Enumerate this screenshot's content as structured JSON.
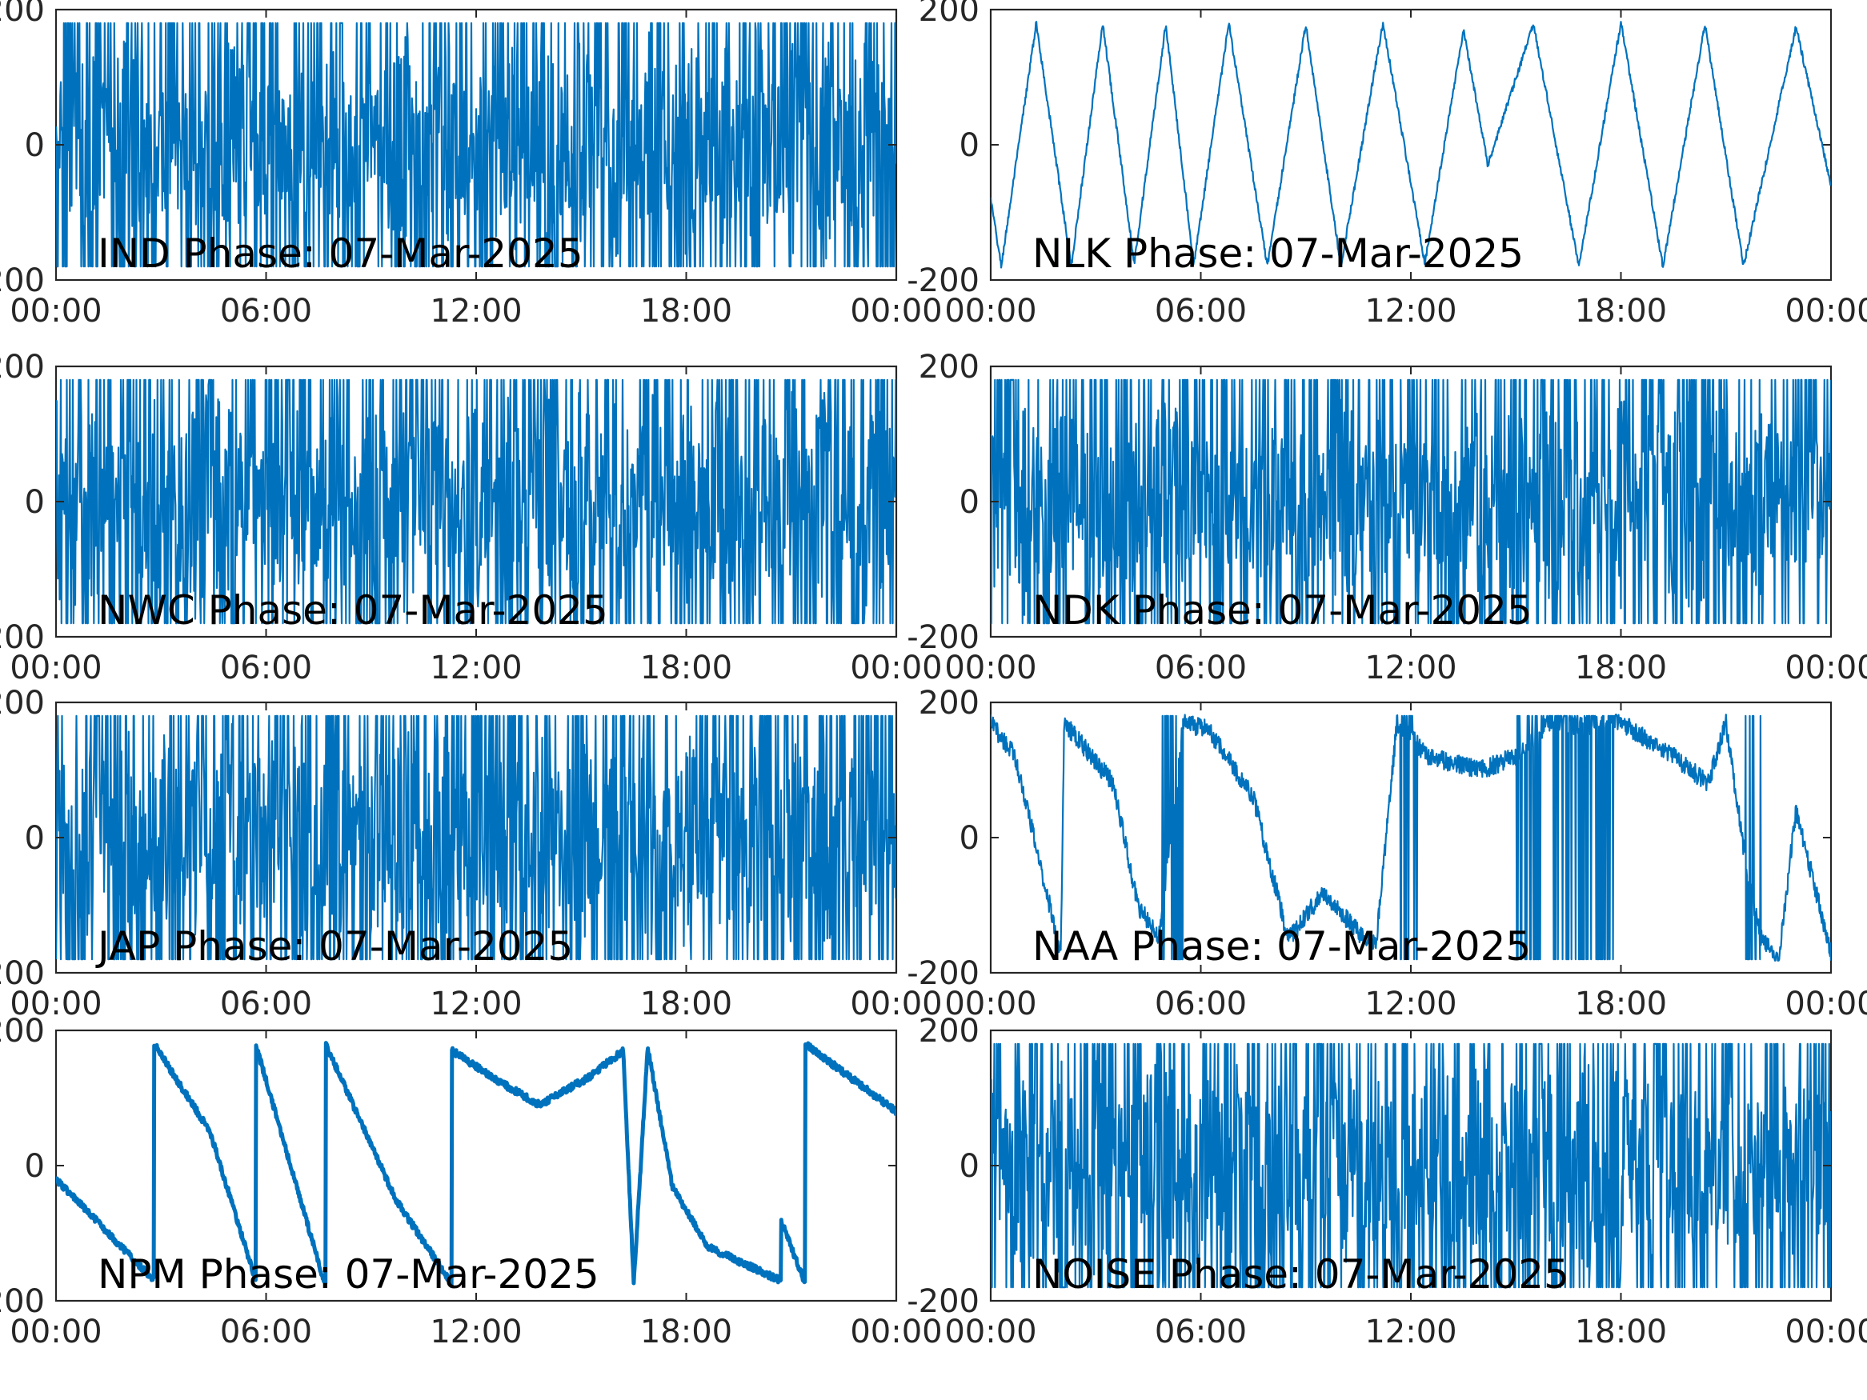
{
  "chart_data": [
    {
      "type": "line",
      "title": "IND Phase: 07-Mar-2025",
      "x_tick_labels": [
        "00:00",
        "06:00",
        "12:00",
        "18:00",
        "00:00"
      ],
      "y_tick_labels": [
        "-200",
        "0",
        "200"
      ],
      "xlim_hours": [
        0,
        24
      ],
      "ylim": [
        -200,
        200
      ],
      "style": "dense_noise",
      "x": [
        0,
        1,
        2,
        3,
        4,
        5,
        6,
        7,
        8,
        9,
        10,
        11,
        12,
        13,
        14,
        15,
        16,
        17,
        18,
        19,
        20,
        21,
        22,
        23,
        24
      ],
      "y": [
        40,
        -120,
        150,
        -30,
        90,
        -150,
        60,
        -80,
        110,
        -20,
        170,
        -160,
        30,
        175,
        -175,
        170,
        -170,
        175,
        -175,
        160,
        -165,
        170,
        -160,
        150,
        -20
      ],
      "grid": false
    },
    {
      "type": "line",
      "title": "NLK Phase: 07-Mar-2025",
      "x_tick_labels": [
        "00:00",
        "06:00",
        "12:00",
        "18:00",
        "00:00"
      ],
      "y_tick_labels": [
        "-200",
        "0",
        "200"
      ],
      "xlim_hours": [
        0,
        24
      ],
      "ylim": [
        -200,
        200
      ],
      "style": "sawtooth",
      "x": [
        0,
        0.3,
        1.3,
        2.3,
        3.2,
        4.1,
        5.0,
        5.8,
        6.8,
        7.9,
        9.0,
        10.0,
        11.2,
        12.4,
        13.5,
        14.2,
        15.5,
        16.8,
        18.0,
        19.2,
        20.4,
        21.5,
        23.0,
        24.0
      ],
      "y": [
        -80,
        -180,
        180,
        -180,
        180,
        -175,
        178,
        -178,
        180,
        -180,
        178,
        -180,
        180,
        -175,
        170,
        -30,
        178,
        -180,
        180,
        -180,
        178,
        -180,
        175,
        -60
      ],
      "grid": false
    },
    {
      "type": "line",
      "title": "NWC Phase: 07-Mar-2025",
      "x_tick_labels": [
        "00:00",
        "06:00",
        "12:00",
        "18:00",
        "00:00"
      ],
      "y_tick_labels": [
        "-200",
        "0",
        "200"
      ],
      "xlim_hours": [
        0,
        24
      ],
      "ylim": [
        -200,
        200
      ],
      "style": "dense_noise",
      "x": [
        0,
        0.6,
        1.0,
        1.6,
        2.2,
        3.0,
        3.8,
        4.5,
        5.5,
        7,
        8,
        9,
        10,
        11,
        12,
        13,
        14,
        15,
        16,
        17,
        18,
        19,
        20,
        21,
        22,
        23,
        24
      ],
      "y": [
        -170,
        170,
        120,
        80,
        0,
        -180,
        175,
        170,
        0,
        150,
        -160,
        170,
        -170,
        160,
        -175,
        170,
        -170,
        165,
        -170,
        175,
        -175,
        170,
        -170,
        165,
        -170,
        170,
        30
      ],
      "grid": false
    },
    {
      "type": "line",
      "title": "NDK Phase: 07-Mar-2025",
      "x_tick_labels": [
        "00:00",
        "06:00",
        "12:00",
        "18:00",
        "00:00"
      ],
      "y_tick_labels": [
        "-200",
        "0",
        "200"
      ],
      "xlim_hours": [
        0,
        24
      ],
      "ylim": [
        -200,
        200
      ],
      "style": "dense_noise",
      "x": [
        0,
        1,
        2,
        3,
        4,
        5,
        6,
        7,
        8,
        9,
        10,
        11,
        12,
        13,
        14,
        15,
        16,
        17,
        18,
        19,
        20,
        21,
        22,
        23,
        24
      ],
      "y": [
        -120,
        170,
        -175,
        120,
        -100,
        160,
        -40,
        30,
        -90,
        100,
        -170,
        80,
        -60,
        40,
        -100,
        150,
        -160,
        170,
        -170,
        150,
        130,
        90,
        -100,
        60,
        -20
      ],
      "grid": false
    },
    {
      "type": "line",
      "title": "JAP Phase: 07-Mar-2025",
      "x_tick_labels": [
        "00:00",
        "06:00",
        "12:00",
        "18:00",
        "00:00"
      ],
      "y_tick_labels": [
        "-200",
        "0",
        "200"
      ],
      "xlim_hours": [
        0,
        24
      ],
      "ylim": [
        -200,
        200
      ],
      "style": "dense_noise",
      "x": [
        0,
        1,
        2,
        3,
        4,
        5,
        6,
        7,
        8,
        9,
        10,
        11,
        12,
        13,
        14,
        15,
        16,
        17,
        18,
        19,
        20,
        21,
        22,
        23,
        24
      ],
      "y": [
        175,
        -170,
        160,
        -150,
        140,
        -175,
        170,
        -160,
        150,
        -170,
        175,
        -165,
        160,
        -170,
        170,
        -160,
        165,
        -175,
        170,
        -165,
        160,
        -170,
        150,
        -160,
        20
      ],
      "grid": false
    },
    {
      "type": "line",
      "title": "NAA Phase: 07-Mar-2025",
      "x_tick_labels": [
        "00:00",
        "06:00",
        "12:00",
        "18:00",
        "00:00"
      ],
      "y_tick_labels": [
        "-200",
        "0",
        "200"
      ],
      "xlim_hours": [
        0,
        24
      ],
      "ylim": [
        -200,
        200
      ],
      "style": "drifting_phase",
      "x": [
        0,
        0.7,
        1.5,
        2.0,
        2.1,
        3.5,
        4.2,
        4.8,
        5.5,
        6.2,
        7.5,
        8.5,
        9.5,
        10.5,
        11.0,
        11.6,
        12.5,
        14.0,
        15.0,
        16.0,
        17.0,
        18.0,
        19.5,
        20.5,
        21.0,
        21.6,
        22.0,
        22.5,
        23.0,
        24.0
      ],
      "y": [
        170,
        120,
        -60,
        -170,
        170,
        80,
        -100,
        -150,
        170,
        160,
        60,
        -150,
        -80,
        -140,
        -160,
        170,
        120,
        100,
        120,
        170,
        165,
        170,
        120,
        80,
        170,
        -50,
        -150,
        -180,
        40,
        -170
      ],
      "grid": false
    },
    {
      "type": "line",
      "title": "NPM Phase: 07-Mar-2025",
      "x_tick_labels": [
        "00:00",
        "06:00",
        "12:00",
        "18:00",
        "00:00"
      ],
      "y_tick_labels": [
        "-200",
        "0",
        "200"
      ],
      "xlim_hours": [
        0,
        24
      ],
      "ylim": [
        -200,
        200
      ],
      "style": "sawtooth",
      "x": [
        0,
        2.8,
        2.8,
        4.4,
        5.7,
        5.7,
        7.7,
        7.7,
        9.7,
        11.3,
        11.3,
        12.8,
        13.8,
        15.2,
        16.2,
        16.5,
        16.9,
        17.6,
        18.6,
        20.7,
        20.7,
        21.4,
        21.4,
        24.0
      ],
      "y": [
        -20,
        -170,
        180,
        50,
        -170,
        180,
        -180,
        180,
        -50,
        -175,
        170,
        120,
        90,
        130,
        170,
        -175,
        175,
        -30,
        -120,
        -170,
        -80,
        -175,
        180,
        80
      ],
      "grid": false
    },
    {
      "type": "line",
      "title": "NOISE Phase: 07-Mar-2025",
      "x_tick_labels": [
        "00:00",
        "06:00",
        "12:00",
        "18:00",
        "00:00"
      ],
      "y_tick_labels": [
        "-200",
        "0",
        "200"
      ],
      "xlim_hours": [
        0,
        24
      ],
      "ylim": [
        -200,
        200
      ],
      "style": "dense_noise",
      "x": [
        0,
        1,
        2,
        3,
        4,
        5,
        6,
        7,
        8,
        9,
        10,
        11,
        12,
        13,
        14,
        15,
        16,
        17,
        18,
        19,
        20,
        21,
        22,
        23,
        24
      ],
      "y": [
        -100,
        170,
        -175,
        160,
        -20,
        -170,
        150,
        -130,
        110,
        -60,
        170,
        -90,
        30,
        150,
        -160,
        120,
        -175,
        170,
        -170,
        160,
        -130,
        90,
        -60,
        100,
        -10
      ],
      "grid": false
    }
  ],
  "colors": {
    "line": "#0072bd",
    "axes": "#262626",
    "background": "#ffffff"
  }
}
